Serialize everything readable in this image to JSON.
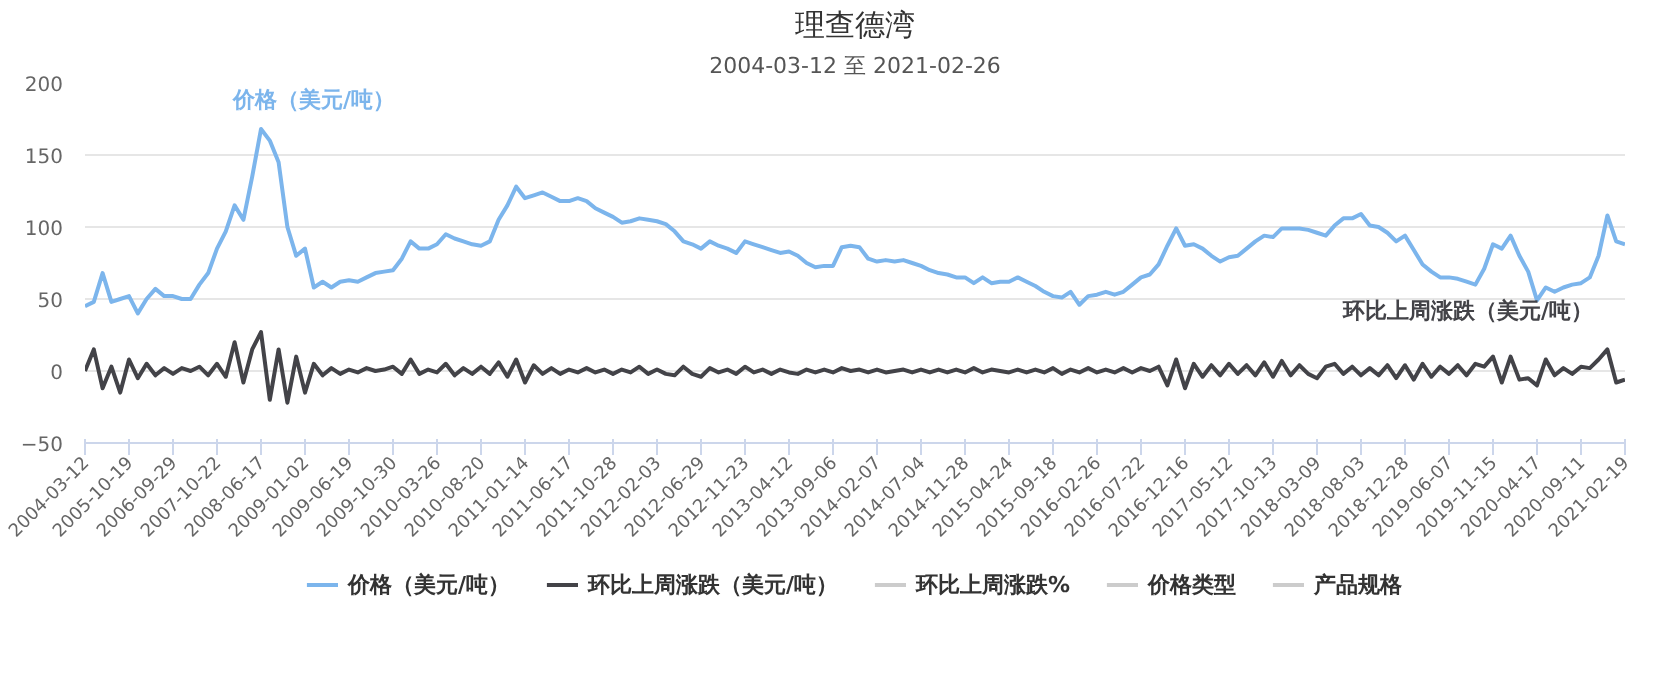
{
  "chart_data": {
    "type": "line",
    "title": "理查德湾",
    "subtitle": "2004-03-12 至 2021-02-26",
    "categories": [
      "2004-03-12",
      null,
      null,
      null,
      null,
      "2005-10-19",
      null,
      null,
      null,
      null,
      "2006-09-29",
      null,
      null,
      null,
      null,
      "2007-10-22",
      null,
      null,
      null,
      null,
      "2008-06-17",
      null,
      null,
      null,
      null,
      "2009-01-02",
      null,
      null,
      null,
      null,
      "2009-06-19",
      null,
      null,
      null,
      null,
      "2009-10-30",
      null,
      null,
      null,
      null,
      "2010-03-26",
      null,
      null,
      null,
      null,
      "2010-08-20",
      null,
      null,
      null,
      null,
      "2011-01-14",
      null,
      null,
      null,
      null,
      "2011-06-17",
      null,
      null,
      null,
      null,
      "2011-10-28",
      null,
      null,
      null,
      null,
      "2012-02-03",
      null,
      null,
      null,
      null,
      "2012-06-29",
      null,
      null,
      null,
      null,
      "2012-11-23",
      null,
      null,
      null,
      null,
      "2013-04-12",
      null,
      null,
      null,
      null,
      "2013-09-06",
      null,
      null,
      null,
      null,
      "2014-02-07",
      null,
      null,
      null,
      null,
      "2014-07-04",
      null,
      null,
      null,
      null,
      "2014-11-28",
      null,
      null,
      null,
      null,
      "2015-04-24",
      null,
      null,
      null,
      null,
      "2015-09-18",
      null,
      null,
      null,
      null,
      "2016-02-26",
      null,
      null,
      null,
      null,
      "2016-07-22",
      null,
      null,
      null,
      null,
      "2016-12-16",
      null,
      null,
      null,
      null,
      "2017-05-12",
      null,
      null,
      null,
      null,
      "2017-10-13",
      null,
      null,
      null,
      null,
      "2018-03-09",
      null,
      null,
      null,
      null,
      "2018-08-03",
      null,
      null,
      null,
      null,
      "2018-12-28",
      null,
      null,
      null,
      null,
      "2019-06-07",
      null,
      null,
      null,
      null,
      "2019-11-15",
      null,
      null,
      null,
      null,
      "2020-04-17",
      null,
      null,
      null,
      null,
      "2020-09-11",
      null,
      null,
      null,
      null,
      "2021-02-19"
    ],
    "series": [
      {
        "name": "价格（美元/吨）",
        "color": "#7cb5ec",
        "values": [
          45,
          48,
          68,
          48,
          50,
          52,
          40,
          50,
          57,
          52,
          52,
          50,
          50,
          60,
          68,
          85,
          97,
          115,
          105,
          135,
          168,
          160,
          145,
          100,
          80,
          85,
          58,
          62,
          58,
          62,
          63,
          62,
          65,
          68,
          69,
          70,
          78,
          90,
          85,
          85,
          88,
          95,
          92,
          90,
          88,
          87,
          90,
          105,
          115,
          128,
          120,
          122,
          124,
          121,
          118,
          118,
          120,
          118,
          113,
          110,
          107,
          103,
          104,
          106,
          105,
          104,
          102,
          97,
          90,
          88,
          85,
          90,
          87,
          85,
          82,
          90,
          88,
          86,
          84,
          82,
          83,
          80,
          75,
          72,
          73,
          73,
          86,
          87,
          86,
          78,
          76,
          77,
          76,
          77,
          75,
          73,
          70,
          68,
          67,
          65,
          65,
          61,
          65,
          61,
          62,
          62,
          65,
          62,
          59,
          55,
          52,
          51,
          55,
          46,
          52,
          53,
          55,
          53,
          55,
          60,
          65,
          67,
          74,
          87,
          99,
          87,
          88,
          85,
          80,
          76,
          79,
          80,
          85,
          90,
          94,
          93,
          99,
          99,
          99,
          98,
          96,
          94,
          101,
          106,
          106,
          109,
          101,
          100,
          96,
          90,
          94,
          84,
          74,
          69,
          65,
          65,
          64,
          62,
          60,
          71,
          88,
          85,
          94,
          80,
          69,
          49,
          58,
          55,
          58,
          60,
          61,
          65,
          80,
          108,
          90,
          88
        ]
      },
      {
        "name": "环比上周涨跌（美元/吨）",
        "color": "#434348",
        "values": [
          0,
          15,
          -12,
          3,
          -15,
          8,
          -5,
          5,
          -3,
          2,
          -2,
          2,
          0,
          3,
          -3,
          5,
          -4,
          20,
          -8,
          15,
          27,
          -20,
          15,
          -22,
          10,
          -15,
          5,
          -3,
          2,
          -2,
          1,
          -1,
          2,
          0,
          1,
          3,
          -2,
          8,
          -2,
          1,
          -1,
          5,
          -3,
          2,
          -2,
          3,
          -2,
          6,
          -4,
          8,
          -8,
          4,
          -2,
          2,
          -2,
          1,
          -1,
          2,
          -1,
          1,
          -2,
          1,
          -1,
          3,
          -2,
          1,
          -2,
          -3,
          3,
          -2,
          -4,
          2,
          -1,
          1,
          -2,
          3,
          -1,
          1,
          -2,
          1,
          -1,
          -2,
          1,
          -1,
          1,
          -1,
          2,
          0,
          1,
          -1,
          1,
          -1,
          0,
          1,
          -1,
          1,
          -1,
          1,
          -1,
          1,
          -1,
          2,
          -1,
          1,
          0,
          -1,
          1,
          -1,
          1,
          -1,
          2,
          -2,
          1,
          -1,
          2,
          -1,
          1,
          -1,
          2,
          -1,
          2,
          0,
          3,
          -10,
          8,
          -12,
          5,
          -4,
          4,
          -3,
          5,
          -2,
          4,
          -3,
          6,
          -4,
          7,
          -3,
          4,
          -2,
          -5,
          3,
          5,
          -2,
          3,
          -3,
          2,
          -3,
          4,
          -5,
          4,
          -6,
          5,
          -4,
          3,
          -2,
          4,
          -3,
          5,
          3,
          10,
          -8,
          10,
          -6,
          -5,
          -10,
          8,
          -3,
          2,
          -2,
          3,
          2,
          8,
          15,
          -8,
          -6
        ]
      },
      {
        "name": "环比上周涨跌%",
        "color": "#cccccc",
        "values": [
          null,
          null,
          null,
          null,
          null,
          null,
          null,
          null,
          null,
          null,
          null,
          null,
          null,
          null,
          null,
          null,
          null,
          null,
          null,
          null,
          null,
          null,
          null,
          null,
          null,
          null,
          null,
          null,
          null,
          null,
          null,
          null,
          null,
          null,
          null,
          null,
          null,
          null,
          null,
          null,
          null,
          null,
          null,
          null,
          null,
          null,
          null,
          null,
          null,
          null,
          null,
          null,
          null,
          null,
          null,
          null,
          null,
          null,
          null,
          null,
          null,
          null,
          null,
          null,
          null,
          null,
          null,
          null,
          null,
          null,
          null,
          null,
          null,
          null,
          null,
          null,
          null,
          null,
          null,
          null,
          null,
          null,
          null,
          null,
          null,
          null,
          null,
          null,
          null,
          null,
          null,
          null,
          null,
          null,
          null,
          null,
          null,
          null,
          null,
          null,
          null,
          null,
          null,
          null,
          null,
          null,
          null,
          null,
          null,
          null,
          null,
          null,
          null,
          null,
          null,
          null,
          null,
          null,
          null,
          null,
          null,
          null,
          null,
          null,
          null,
          null,
          null,
          null,
          null,
          null,
          null,
          null,
          null,
          null,
          null,
          null,
          null,
          null,
          null,
          null,
          null,
          null,
          null,
          null,
          null,
          null,
          null,
          null,
          null,
          null,
          null,
          null,
          null,
          null,
          null,
          null,
          null,
          null,
          null,
          null,
          null,
          null,
          null,
          null,
          null,
          null,
          null,
          null,
          null,
          null,
          null,
          null,
          null,
          null,
          null,
          null
        ]
      },
      {
        "name": "价格类型",
        "color": "#cccccc",
        "values": [
          null,
          null,
          null,
          null,
          null,
          null,
          null,
          null,
          null,
          null,
          null,
          null,
          null,
          null,
          null,
          null,
          null,
          null,
          null,
          null,
          null,
          null,
          null,
          null,
          null,
          null,
          null,
          null,
          null,
          null,
          null,
          null,
          null,
          null,
          null,
          null,
          null,
          null,
          null,
          null,
          null,
          null,
          null,
          null,
          null,
          null,
          null,
          null,
          null,
          null,
          null,
          null,
          null,
          null,
          null,
          null,
          null,
          null,
          null,
          null,
          null,
          null,
          null,
          null,
          null,
          null,
          null,
          null,
          null,
          null,
          null,
          null,
          null,
          null,
          null,
          null,
          null,
          null,
          null,
          null,
          null,
          null,
          null,
          null,
          null,
          null,
          null,
          null,
          null,
          null,
          null,
          null,
          null,
          null,
          null,
          null,
          null,
          null,
          null,
          null,
          null,
          null,
          null,
          null,
          null,
          null,
          null,
          null,
          null,
          null,
          null,
          null,
          null,
          null,
          null,
          null,
          null,
          null,
          null,
          null,
          null,
          null,
          null,
          null,
          null,
          null,
          null,
          null,
          null,
          null,
          null,
          null,
          null,
          null,
          null,
          null,
          null,
          null,
          null,
          null,
          null,
          null,
          null,
          null,
          null,
          null,
          null,
          null,
          null,
          null,
          null,
          null,
          null,
          null,
          null,
          null,
          null,
          null,
          null,
          null,
          null,
          null,
          null,
          null,
          null,
          null,
          null,
          null,
          null,
          null,
          null,
          null,
          null,
          null,
          null,
          null
        ]
      },
      {
        "name": "产品规格",
        "color": "#cccccc",
        "values": [
          null,
          null,
          null,
          null,
          null,
          null,
          null,
          null,
          null,
          null,
          null,
          null,
          null,
          null,
          null,
          null,
          null,
          null,
          null,
          null,
          null,
          null,
          null,
          null,
          null,
          null,
          null,
          null,
          null,
          null,
          null,
          null,
          null,
          null,
          null,
          null,
          null,
          null,
          null,
          null,
          null,
          null,
          null,
          null,
          null,
          null,
          null,
          null,
          null,
          null,
          null,
          null,
          null,
          null,
          null,
          null,
          null,
          null,
          null,
          null,
          null,
          null,
          null,
          null,
          null,
          null,
          null,
          null,
          null,
          null,
          null,
          null,
          null,
          null,
          null,
          null,
          null,
          null,
          null,
          null,
          null,
          null,
          null,
          null,
          null,
          null,
          null,
          null,
          null,
          null,
          null,
          null,
          null,
          null,
          null,
          null,
          null,
          null,
          null,
          null,
          null,
          null,
          null,
          null,
          null,
          null,
          null,
          null,
          null,
          null,
          null,
          null,
          null,
          null,
          null,
          null,
          null,
          null,
          null,
          null,
          null,
          null,
          null,
          null,
          null,
          null,
          null,
          null,
          null,
          null,
          null,
          null,
          null,
          null,
          null,
          null,
          null,
          null,
          null,
          null,
          null,
          null,
          null,
          null,
          null,
          null,
          null,
          null,
          null,
          null,
          null,
          null,
          null,
          null,
          null,
          null,
          null,
          null,
          null,
          null,
          null,
          null,
          null,
          null,
          null,
          null,
          null,
          null,
          null,
          null,
          null,
          null,
          null,
          null,
          null,
          null
        ]
      }
    ],
    "ylim": [
      -50,
      200
    ],
    "yticks": [
      -50,
      0,
      50,
      100,
      150,
      200
    ],
    "grid": "y",
    "legend": "bottom"
  }
}
